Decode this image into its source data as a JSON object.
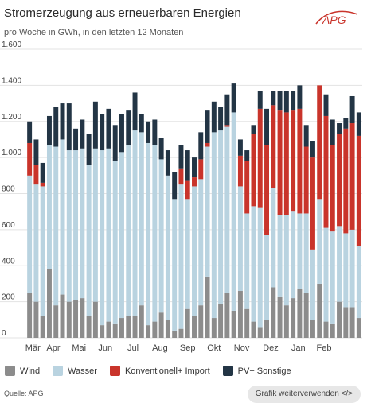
{
  "header": {
    "title": "Stromerzeugung aus erneuerbaren Energien",
    "subtitle": "pro Woche in GWh, in den letzten 12 Monaten",
    "logo_text": "APG"
  },
  "footer": {
    "source": "Quelle: APG",
    "reuse_button": "Grafik weiterverwenden </>"
  },
  "colors": {
    "wind": "#8c8c8c",
    "wasser": "#b9d3e0",
    "konventionell": "#c9342b",
    "pv": "#233545",
    "logo": "#c9342b"
  },
  "chart_data": {
    "type": "bar",
    "stacked": true,
    "ylim": [
      0,
      1600
    ],
    "yticks": [
      0,
      200,
      400,
      600,
      800,
      "1.000",
      "1.200",
      "1.400",
      "1.600"
    ],
    "ytick_values": [
      0,
      200,
      400,
      600,
      800,
      1000,
      1200,
      1400,
      1600
    ],
    "grid": true,
    "legend_position": "bottom",
    "month_labels": [
      {
        "label": "Mär",
        "week": 0.5
      },
      {
        "label": "Apr",
        "week": 3.6
      },
      {
        "label": "Mai",
        "week": 7.5
      },
      {
        "label": "Jun",
        "week": 11.5
      },
      {
        "label": "Jul",
        "week": 15.7
      },
      {
        "label": "Aug",
        "week": 19.8
      },
      {
        "label": "Sep",
        "week": 24.0
      },
      {
        "label": "Okt",
        "week": 28.0
      },
      {
        "label": "Nov",
        "week": 32.2
      },
      {
        "label": "Dez",
        "week": 36.6
      },
      {
        "label": "Jan",
        "week": 40.8
      },
      {
        "label": "Feb",
        "week": 44.7
      }
    ],
    "series": [
      {
        "name": "Wind",
        "color_key": "wind",
        "values": [
          250,
          200,
          120,
          380,
          180,
          240,
          200,
          210,
          220,
          120,
          200,
          70,
          90,
          80,
          110,
          120,
          120,
          180,
          70,
          90,
          140,
          100,
          40,
          50,
          160,
          120,
          180,
          340,
          110,
          190,
          250,
          150,
          260,
          160,
          90,
          60,
          100,
          280,
          230,
          180,
          220,
          270,
          250,
          100,
          300,
          90,
          80,
          200,
          170,
          170,
          110
        ]
      },
      {
        "name": "Wasser",
        "color_key": "wasser",
        "values": [
          650,
          650,
          720,
          690,
          880,
          860,
          840,
          830,
          830,
          840,
          850,
          970,
          960,
          900,
          920,
          950,
          1030,
          960,
          1010,
          980,
          850,
          800,
          730,
          800,
          610,
          720,
          700,
          720,
          1030,
          960,
          920,
          1100,
          580,
          530,
          640,
          660,
          470,
          550,
          450,
          500,
          480,
          420,
          440,
          390,
          470,
          520,
          510,
          420,
          410,
          430,
          400
        ]
      },
      {
        "name": "Konventionell+ Import",
        "color_key": "konventionell",
        "values": [
          180,
          110,
          20,
          0,
          0,
          0,
          0,
          0,
          0,
          0,
          0,
          0,
          0,
          0,
          0,
          0,
          0,
          0,
          0,
          0,
          0,
          0,
          0,
          90,
          100,
          50,
          110,
          20,
          0,
          0,
          10,
          0,
          170,
          290,
          400,
          550,
          500,
          460,
          580,
          570,
          560,
          580,
          370,
          510,
          630,
          620,
          480,
          510,
          580,
          590,
          610
        ]
      },
      {
        "name": "PV+ Sonstige",
        "color_key": "pv",
        "values": [
          120,
          140,
          110,
          160,
          220,
          200,
          260,
          120,
          160,
          170,
          260,
          200,
          220,
          200,
          210,
          190,
          210,
          100,
          120,
          140,
          120,
          140,
          150,
          130,
          170,
          110,
          150,
          180,
          170,
          130,
          170,
          160,
          90,
          60,
          50,
          100,
          200,
          80,
          110,
          120,
          110,
          130,
          120,
          90,
          0,
          120,
          140,
          60,
          60,
          150,
          130
        ]
      }
    ]
  }
}
